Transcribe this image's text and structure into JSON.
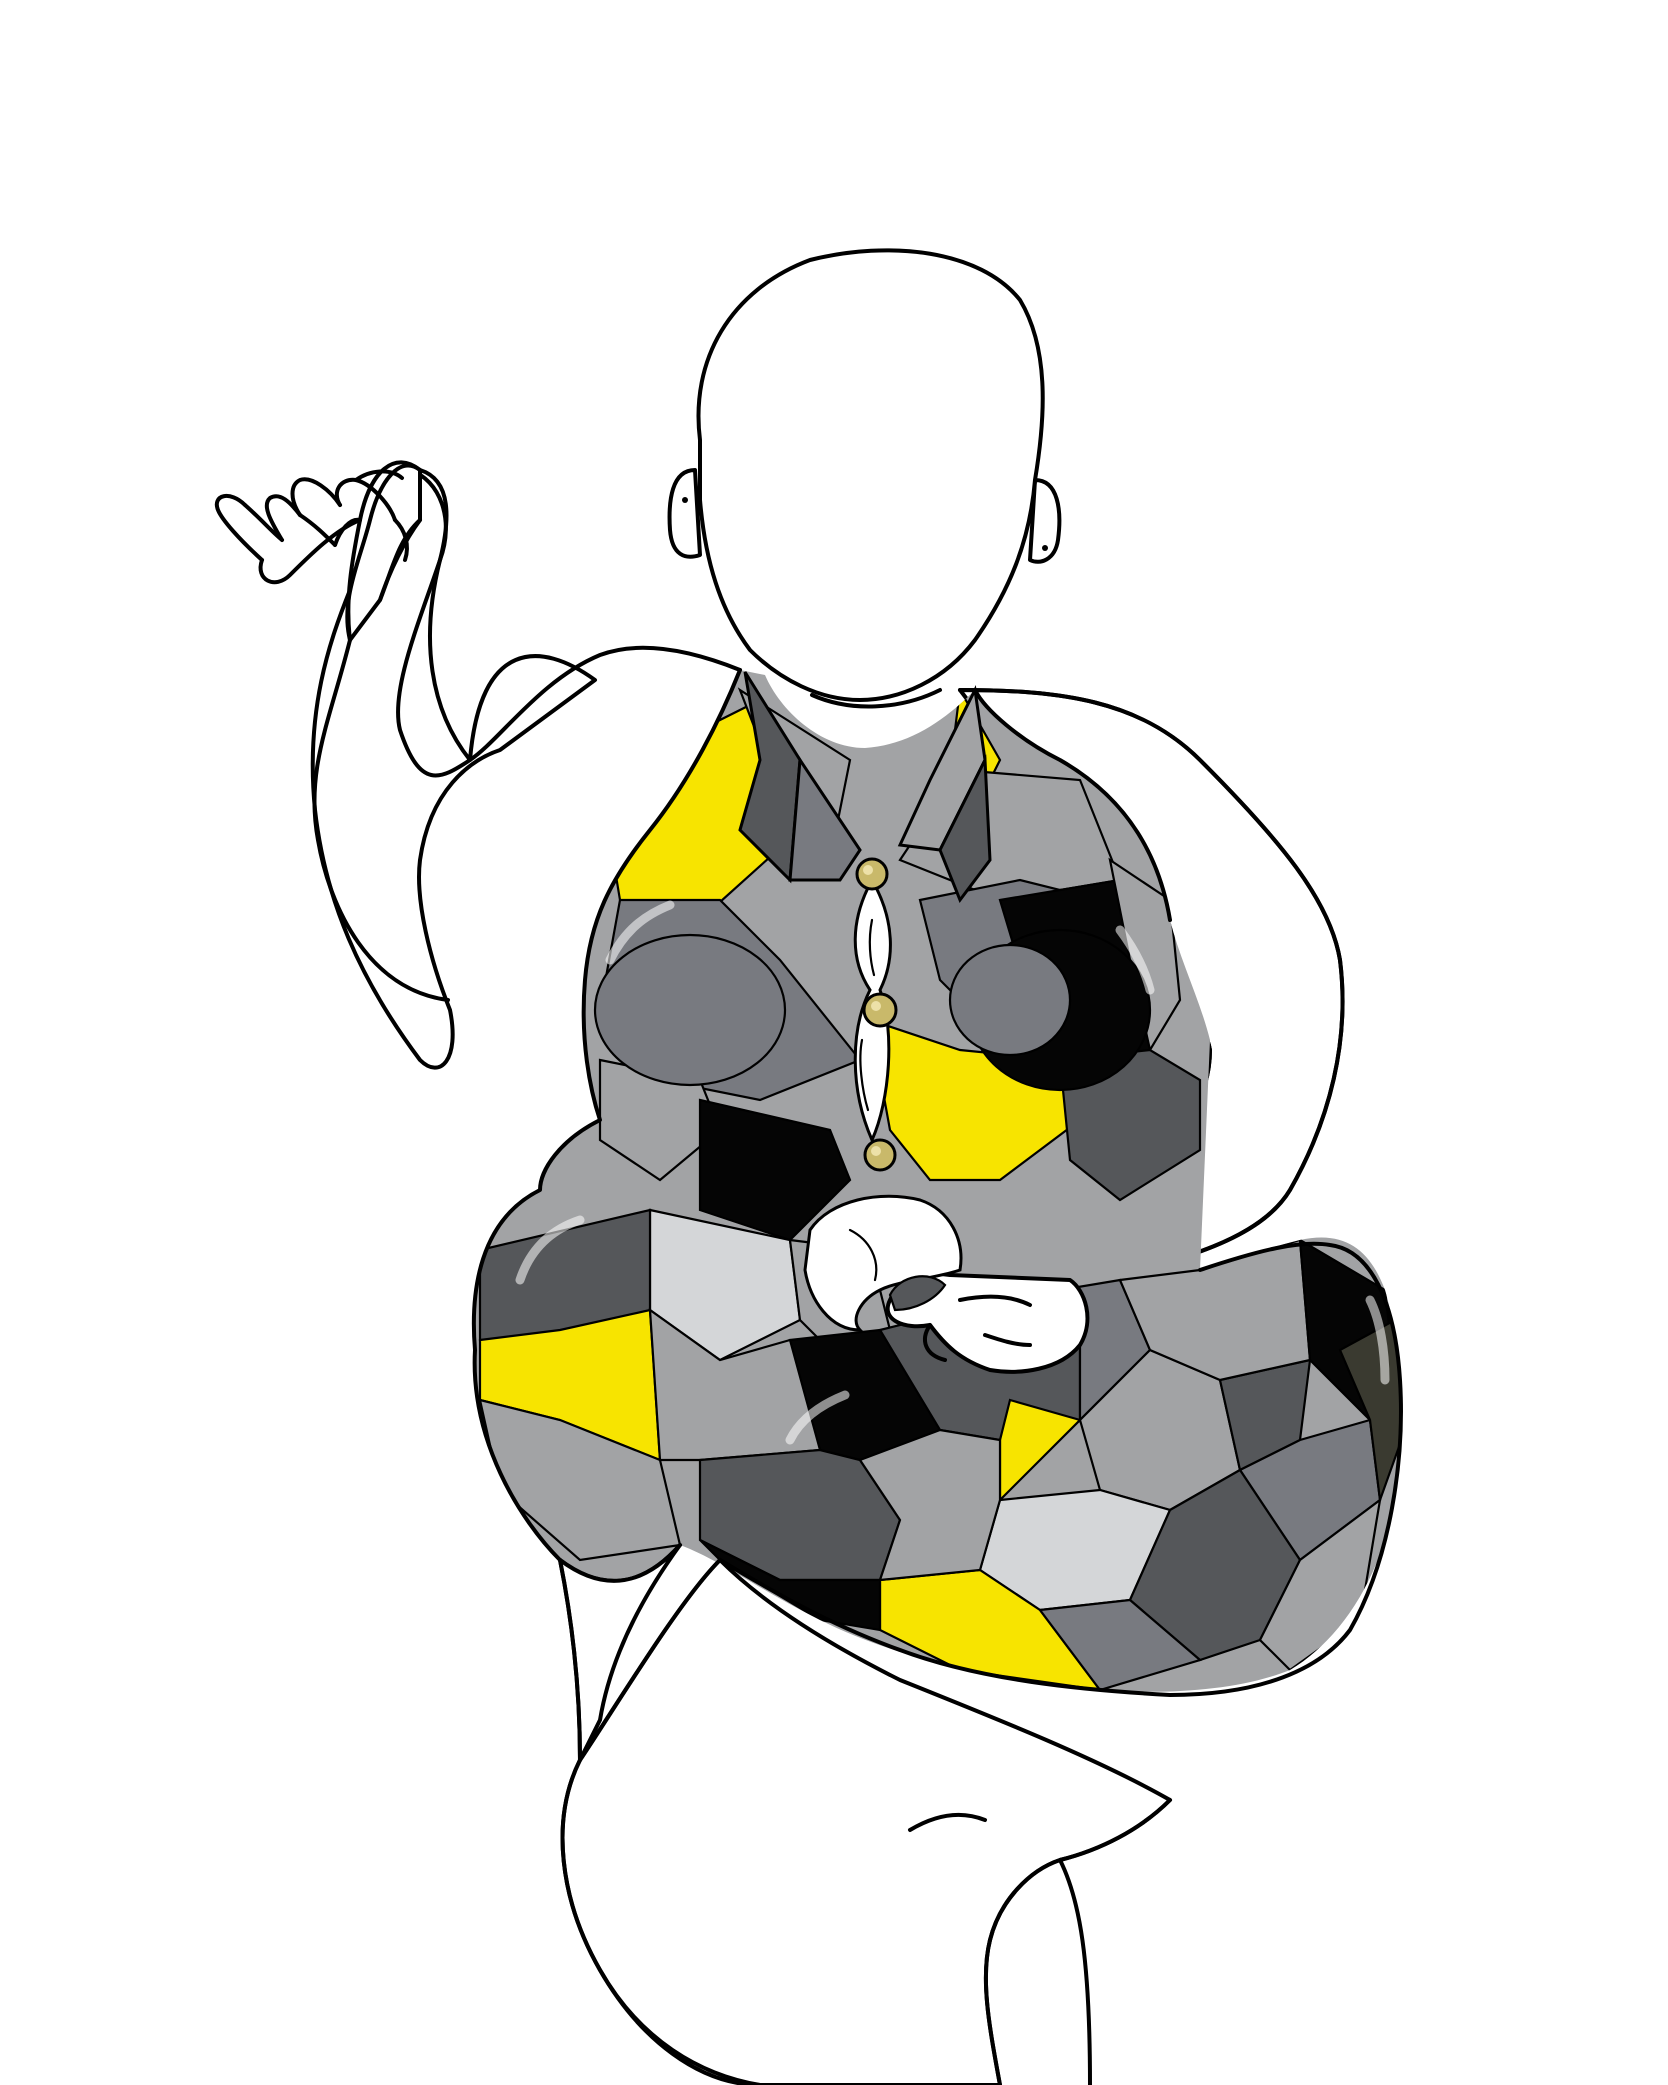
{
  "illustration": {
    "subject": "",
    "palette": {
      "background": "#ffffff",
      "outline": "#000000",
      "skin": "#ffffff",
      "yellow": "#f7e400",
      "light_gray": "#d4d6d8",
      "mid_gray": "#a2a3a5",
      "slate": "#787a80",
      "dark_gray": "#55575a",
      "black": "#050505",
      "olive_dark": "#3a3a30",
      "button_gold": "#c9b96a"
    },
    "garment_buttons": 3
  }
}
